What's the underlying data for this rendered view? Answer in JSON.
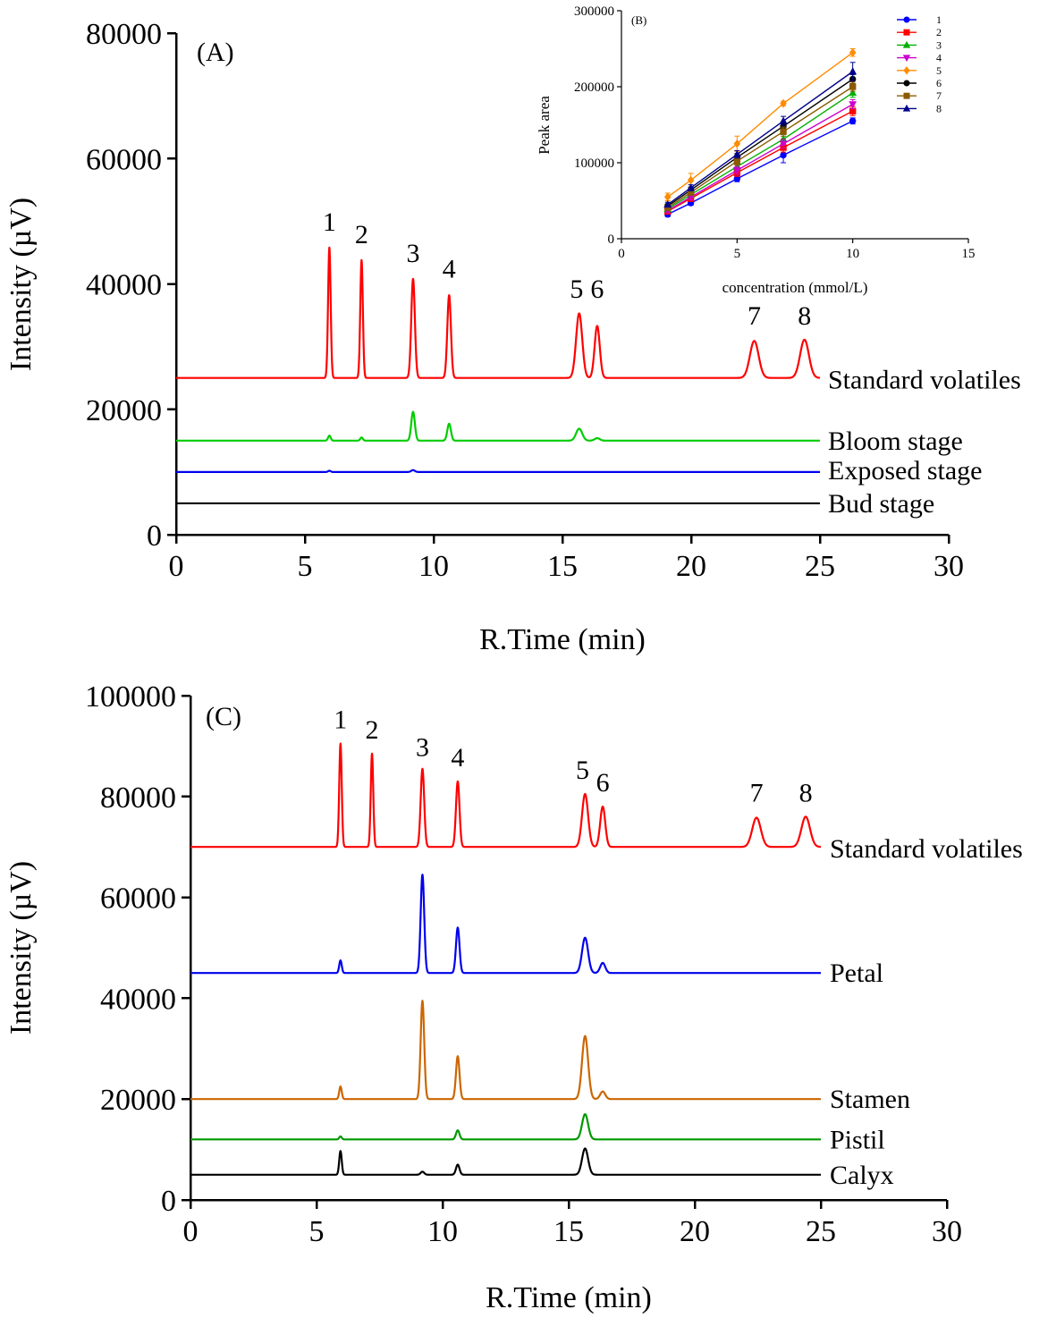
{
  "chart_data": [
    {
      "id": "A",
      "type": "line",
      "panel_label": "(A)",
      "xlabel": "R.Time (min)",
      "ylabel": "Intensity (µV)",
      "xlim": [
        0,
        30
      ],
      "ylim": [
        0,
        80000
      ],
      "xticks": [
        0,
        5,
        10,
        15,
        20,
        25,
        30
      ],
      "yticks": [
        0,
        20000,
        40000,
        60000,
        80000
      ],
      "x_end": 25,
      "series": [
        {
          "name": "Standard volatiles",
          "color": "#ff0000",
          "baseline": 25000,
          "peaks": [
            [
              5.95,
              20800,
              0.05
            ],
            [
              7.2,
              18800,
              0.05
            ],
            [
              9.2,
              15800,
              0.07
            ],
            [
              10.6,
              13200,
              0.07
            ],
            [
              15.65,
              10300,
              0.12
            ],
            [
              16.35,
              8300,
              0.1
            ],
            [
              22.45,
              5900,
              0.17
            ],
            [
              24.4,
              6100,
              0.17
            ]
          ]
        },
        {
          "name": "Bloom stage",
          "color": "#00cc00",
          "baseline": 15000,
          "peaks": [
            [
              5.95,
              800,
              0.05
            ],
            [
              7.2,
              500,
              0.05
            ],
            [
              9.2,
              4600,
              0.07
            ],
            [
              10.6,
              2700,
              0.07
            ],
            [
              15.65,
              1900,
              0.12
            ],
            [
              16.35,
              400,
              0.1
            ]
          ]
        },
        {
          "name": "Exposed stage",
          "color": "#0000ee",
          "baseline": 10000,
          "peaks": [
            [
              5.95,
              200,
              0.05
            ],
            [
              9.2,
              300,
              0.07
            ]
          ]
        },
        {
          "name": "Bud stage",
          "color": "#000000",
          "baseline": 5000,
          "peaks": []
        }
      ],
      "peak_labels": [
        {
          "text": "1",
          "x": 5.95,
          "y": 48500
        },
        {
          "text": "2",
          "x": 7.2,
          "y": 46500
        },
        {
          "text": "3",
          "x": 9.2,
          "y": 43500
        },
        {
          "text": "4",
          "x": 10.6,
          "y": 41000
        },
        {
          "text": "5",
          "x": 15.55,
          "y": 37800
        },
        {
          "text": "6",
          "x": 16.35,
          "y": 37800
        },
        {
          "text": "7",
          "x": 22.45,
          "y": 33500
        },
        {
          "text": "8",
          "x": 24.4,
          "y": 33500
        }
      ]
    },
    {
      "id": "B",
      "type": "line",
      "panel_label": "(B)",
      "xlabel": "concentration (mmol/L)",
      "ylabel": "Peak area",
      "xlim": [
        0,
        15
      ],
      "ylim": [
        0,
        300000
      ],
      "xticks": [
        0,
        5,
        10,
        15
      ],
      "yticks": [
        0,
        100000,
        200000,
        300000
      ],
      "x": [
        2,
        3,
        5,
        7,
        10
      ],
      "legend_position": "top-right",
      "series": [
        {
          "name": "1",
          "color": "#0000ff",
          "marker": "circle",
          "values": [
            32000,
            47000,
            79000,
            110000,
            155000
          ],
          "err": [
            3000,
            3000,
            4000,
            10000,
            4000
          ]
        },
        {
          "name": "2",
          "color": "#ff0000",
          "marker": "square",
          "values": [
            36000,
            53000,
            87000,
            120000,
            168000
          ],
          "err": [
            3000,
            4000,
            5000,
            6000,
            6000
          ]
        },
        {
          "name": "3",
          "color": "#00b000",
          "marker": "triangle-up",
          "values": [
            39000,
            58000,
            95000,
            131000,
            192000
          ],
          "err": [
            3000,
            4000,
            5000,
            6000,
            6000
          ]
        },
        {
          "name": "4",
          "color": "#cc00cc",
          "marker": "triangle-down",
          "values": [
            37000,
            55000,
            90000,
            125000,
            177000
          ],
          "err": [
            3000,
            4000,
            5000,
            6000,
            6000
          ]
        },
        {
          "name": "5",
          "color": "#ff8c00",
          "marker": "diamond",
          "values": [
            55000,
            77000,
            125000,
            178000,
            245000
          ],
          "err": [
            5000,
            9000,
            10000,
            3000,
            5000
          ]
        },
        {
          "name": "6",
          "color": "#000000",
          "marker": "circle",
          "values": [
            43000,
            64000,
            107000,
            148000,
            210000
          ],
          "err": [
            3000,
            4000,
            5000,
            6000,
            6000
          ]
        },
        {
          "name": "7",
          "color": "#8b5a00",
          "marker": "square",
          "values": [
            41000,
            61000,
            102000,
            141000,
            200000
          ],
          "err": [
            3000,
            4000,
            5000,
            6000,
            6000
          ]
        },
        {
          "name": "8",
          "color": "#00008b",
          "marker": "triangle-up",
          "values": [
            45000,
            67000,
            111000,
            155000,
            220000
          ],
          "err": [
            3000,
            4000,
            5000,
            6000,
            12000
          ]
        }
      ]
    },
    {
      "id": "C",
      "type": "line",
      "panel_label": "(C)",
      "xlabel": "R.Time (min)",
      "ylabel": "Intensity (µV)",
      "xlim": [
        0,
        30
      ],
      "ylim": [
        0,
        100000
      ],
      "xticks": [
        0,
        5,
        10,
        15,
        20,
        25,
        30
      ],
      "yticks": [
        0,
        20000,
        40000,
        60000,
        80000,
        100000
      ],
      "x_end": 25,
      "series": [
        {
          "name": "Standard volatiles",
          "color": "#ff0000",
          "baseline": 70000,
          "peaks": [
            [
              5.95,
              20500,
              0.05
            ],
            [
              7.2,
              18500,
              0.05
            ],
            [
              9.2,
              15500,
              0.07
            ],
            [
              10.6,
              13000,
              0.07
            ],
            [
              15.65,
              10500,
              0.12
            ],
            [
              16.35,
              8000,
              0.1
            ],
            [
              22.45,
              5800,
              0.17
            ],
            [
              24.4,
              6000,
              0.17
            ]
          ]
        },
        {
          "name": "Petal",
          "color": "#0000ee",
          "baseline": 45000,
          "peaks": [
            [
              5.95,
              2500,
              0.05
            ],
            [
              9.2,
              19500,
              0.07
            ],
            [
              10.6,
              9000,
              0.07
            ],
            [
              15.65,
              7000,
              0.12
            ],
            [
              16.35,
              2000,
              0.1
            ]
          ]
        },
        {
          "name": "Stamen",
          "color": "#cc6600",
          "baseline": 20000,
          "peaks": [
            [
              5.95,
              2500,
              0.05
            ],
            [
              9.2,
              19500,
              0.07
            ],
            [
              10.6,
              8500,
              0.07
            ],
            [
              15.65,
              12500,
              0.12
            ],
            [
              16.35,
              1500,
              0.1
            ]
          ]
        },
        {
          "name": "Pistil",
          "color": "#009900",
          "baseline": 12000,
          "peaks": [
            [
              5.95,
              600,
              0.05
            ],
            [
              10.6,
              1800,
              0.07
            ],
            [
              15.65,
              5000,
              0.12
            ]
          ]
        },
        {
          "name": "Calyx",
          "color": "#000000",
          "baseline": 5000,
          "peaks": [
            [
              5.95,
              4700,
              0.05
            ],
            [
              9.2,
              600,
              0.07
            ],
            [
              10.6,
              2000,
              0.07
            ],
            [
              15.65,
              5200,
              0.12
            ]
          ]
        }
      ],
      "peak_labels": [
        {
          "text": "1",
          "x": 5.95,
          "y": 93500
        },
        {
          "text": "2",
          "x": 7.2,
          "y": 91500
        },
        {
          "text": "3",
          "x": 9.2,
          "y": 88000
        },
        {
          "text": "4",
          "x": 10.6,
          "y": 86000
        },
        {
          "text": "5",
          "x": 15.55,
          "y": 83500
        },
        {
          "text": "6",
          "x": 16.35,
          "y": 81000
        },
        {
          "text": "7",
          "x": 22.45,
          "y": 79000
        },
        {
          "text": "8",
          "x": 24.4,
          "y": 79000
        }
      ]
    }
  ]
}
